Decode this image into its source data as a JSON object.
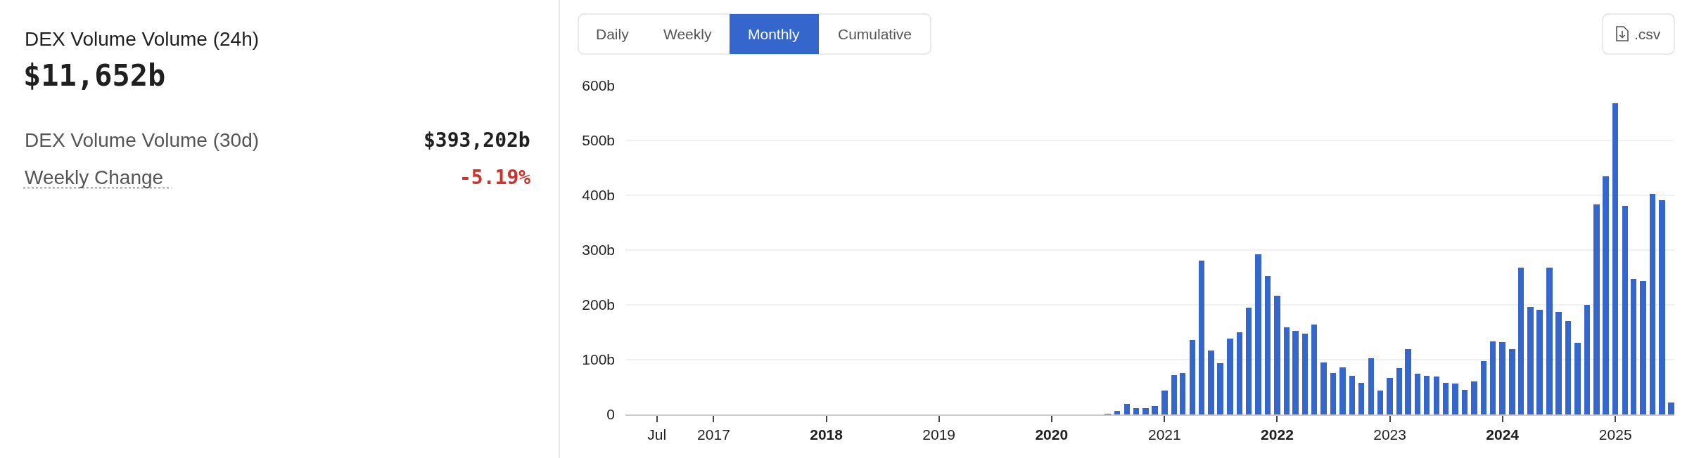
{
  "chart_data": [
    {
      "type": "other",
      "title": "DEX Volume Volume (24h)",
      "subtitle": "$11,652b",
      "annotations": [
        "DEX Volume Volume (30d)",
        "$393,202b",
        "Weekly Change",
        "-5.19%"
      ]
    },
    {
      "type": "bar",
      "annotations": [
        "Daily",
        "Weekly",
        "Monthly",
        "Cumulative",
        ".csv"
      ],
      "color": "#3466cc",
      "grid": "y",
      "x": [
        "2020-07",
        "2020-08",
        "2020-09",
        "2020-10",
        "2020-11",
        "2020-12",
        "2021-01",
        "2021-02",
        "2021-03",
        "2021-04",
        "2021-05",
        "2021-06",
        "2021-07",
        "2021-08",
        "2021-09",
        "2021-10",
        "2021-11",
        "2021-12",
        "2022-01",
        "2022-02",
        "2022-03",
        "2022-04",
        "2022-05",
        "2022-06",
        "2022-07",
        "2022-08",
        "2022-09",
        "2022-10",
        "2022-11",
        "2022-12",
        "2023-01",
        "2023-02",
        "2023-03",
        "2023-04",
        "2023-05",
        "2023-06",
        "2023-07",
        "2023-08",
        "2023-09",
        "2023-10",
        "2023-11",
        "2023-12",
        "2024-01",
        "2024-02",
        "2024-03",
        "2024-04",
        "2024-05",
        "2024-06",
        "2024-07",
        "2024-08",
        "2024-09",
        "2024-10",
        "2024-11",
        "2024-12",
        "2025-01",
        "2025-02",
        "2025-03",
        "2025-04",
        "2025-05",
        "2025-06",
        "2025-07"
      ],
      "values": [
        1,
        6,
        19,
        12,
        12,
        16,
        44,
        72,
        76,
        136,
        281,
        117,
        93,
        138,
        150,
        195,
        292,
        253,
        217,
        159,
        153,
        148,
        164,
        95,
        76,
        86,
        70,
        58,
        103,
        44,
        67,
        84,
        119,
        75,
        71,
        69,
        58,
        57,
        45,
        60,
        97,
        133,
        132,
        119,
        268,
        196,
        191,
        268,
        187,
        170,
        131,
        200,
        383,
        435,
        568,
        381,
        247,
        244,
        402,
        391,
        22
      ],
      "xlim": [
        "2016-03-21",
        "2025-07-11"
      ],
      "xticks": [
        {
          "value": "2016-07-01",
          "label": "Jul"
        },
        {
          "value": "2017-01-01",
          "label": "2017"
        },
        {
          "value": "2018-01-01",
          "label": "2018"
        },
        {
          "value": "2019-01-01",
          "label": "2019"
        },
        {
          "value": "2020-01-01",
          "label": "2020"
        },
        {
          "value": "2021-01-01",
          "label": "2021"
        },
        {
          "value": "2022-01-01",
          "label": "2022"
        },
        {
          "value": "2023-01-01",
          "label": "2023"
        },
        {
          "value": "2024-01-01",
          "label": "2024"
        },
        {
          "value": "2025-01-01",
          "label": "2025"
        }
      ],
      "ylim": [
        0,
        600
      ],
      "yticks": [
        0,
        {
          "value": 100,
          "label": "100b"
        },
        {
          "value": 200,
          "label": "200b"
        },
        {
          "value": 300,
          "label": "300b"
        },
        {
          "value": 400,
          "label": "400b"
        },
        {
          "value": 500,
          "label": "500b"
        },
        {
          "value": 600,
          "label": "600b"
        }
      ]
    }
  ]
}
